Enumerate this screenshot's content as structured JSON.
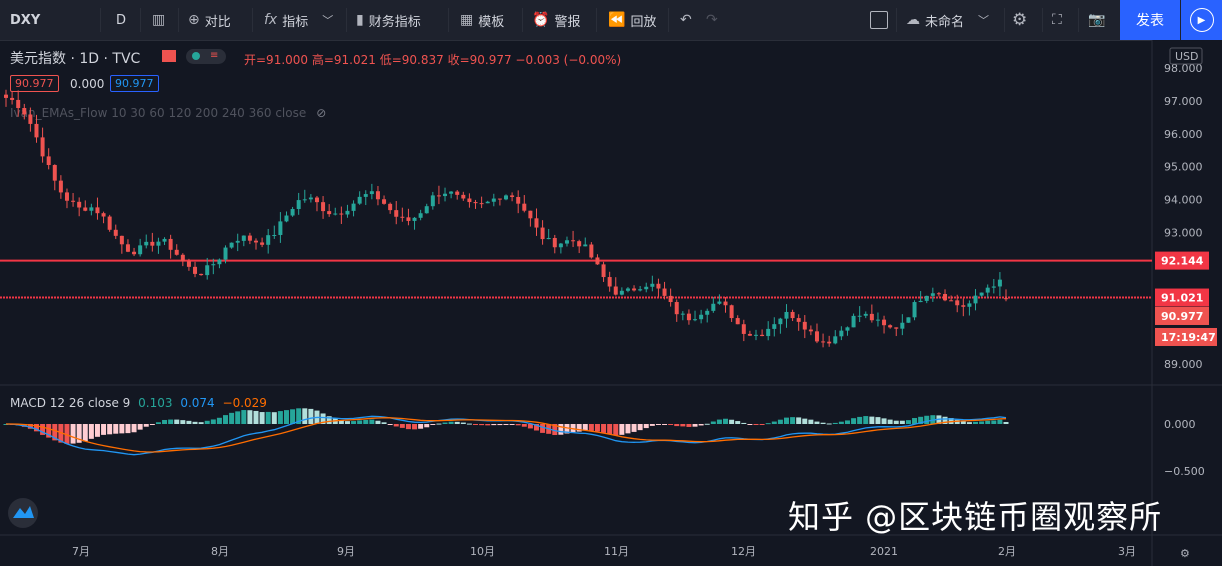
{
  "toolbar": {
    "symbol": "DXY",
    "interval": "D",
    "compare": "对比",
    "indicators": "指标",
    "financials": "财务指标",
    "templates": "模板",
    "alert": "警报",
    "replay": "回放",
    "layout_name": "未命名",
    "publish": "发表"
  },
  "legend": {
    "title": "美元指数 · 1D · TVC",
    "ohlc": "开=91.000 高=91.021 低=90.837 收=90.977 −0.003 (−0.00%)",
    "bid": "90.977",
    "spread": "0.000",
    "ask": "90.977",
    "indicator": "Ivan_EMAs_Flow 10 30 60 120 200 240 360 close",
    "macd_label": "MACD 12 26 close 9",
    "macd_hist": "0.103",
    "macd_line": "0.074",
    "macd_signal": "−0.029"
  },
  "price_axis": {
    "currency": "USD",
    "ticks": [
      "98.000",
      "97.000",
      "96.000",
      "95.000",
      "94.000",
      "93.000",
      "89.000"
    ],
    "markers": [
      {
        "label": "92.144",
        "value": 92.144,
        "color": "#f23645"
      },
      {
        "label": "91.021",
        "value": 91.021,
        "color": "#f23645"
      },
      {
        "label": "90.977",
        "value": 90.977,
        "color": "#ef5350"
      },
      {
        "label": "17:19:47",
        "value": null,
        "color": "#ef5350"
      }
    ],
    "macd_ticks": [
      "0.000",
      "−0.500"
    ]
  },
  "time_axis": {
    "ticks": [
      "7月",
      "8月",
      "9月",
      "10月",
      "11月",
      "12月",
      "2021",
      "2月",
      "3月"
    ]
  },
  "watermark": "知乎 @区块链币圈观察所",
  "colors": {
    "up": "#26a69a",
    "down": "#ef5350",
    "macd": "#2196f3",
    "signal": "#ff6d00",
    "line": "#f23645"
  },
  "chart_data": {
    "type": "candlestick",
    "title": "美元指数 1D TVC",
    "ylim": [
      88.6,
      98.3
    ],
    "horizontal_lines": [
      92.144,
      91.021
    ],
    "monthly_closes": [
      {
        "month": "2020-06",
        "close": 97.4
      },
      {
        "month": "2020-07",
        "close": 93.3
      },
      {
        "month": "2020-08",
        "close": 92.2
      },
      {
        "month": "2020-09",
        "close": 94.0
      },
      {
        "month": "2020-10",
        "close": 94.0
      },
      {
        "month": "2020-11",
        "close": 91.9
      },
      {
        "month": "2020-12",
        "close": 89.9
      },
      {
        "month": "2021-01",
        "close": 90.5
      },
      {
        "month": "2021-02",
        "close": 90.98
      }
    ],
    "last": {
      "open": 91.0,
      "high": 91.021,
      "low": 90.837,
      "close": 90.977
    },
    "macd": {
      "hist": 0.103,
      "macd": 0.074,
      "signal": -0.029,
      "ylim": [
        -1.2,
        0.3
      ]
    }
  }
}
